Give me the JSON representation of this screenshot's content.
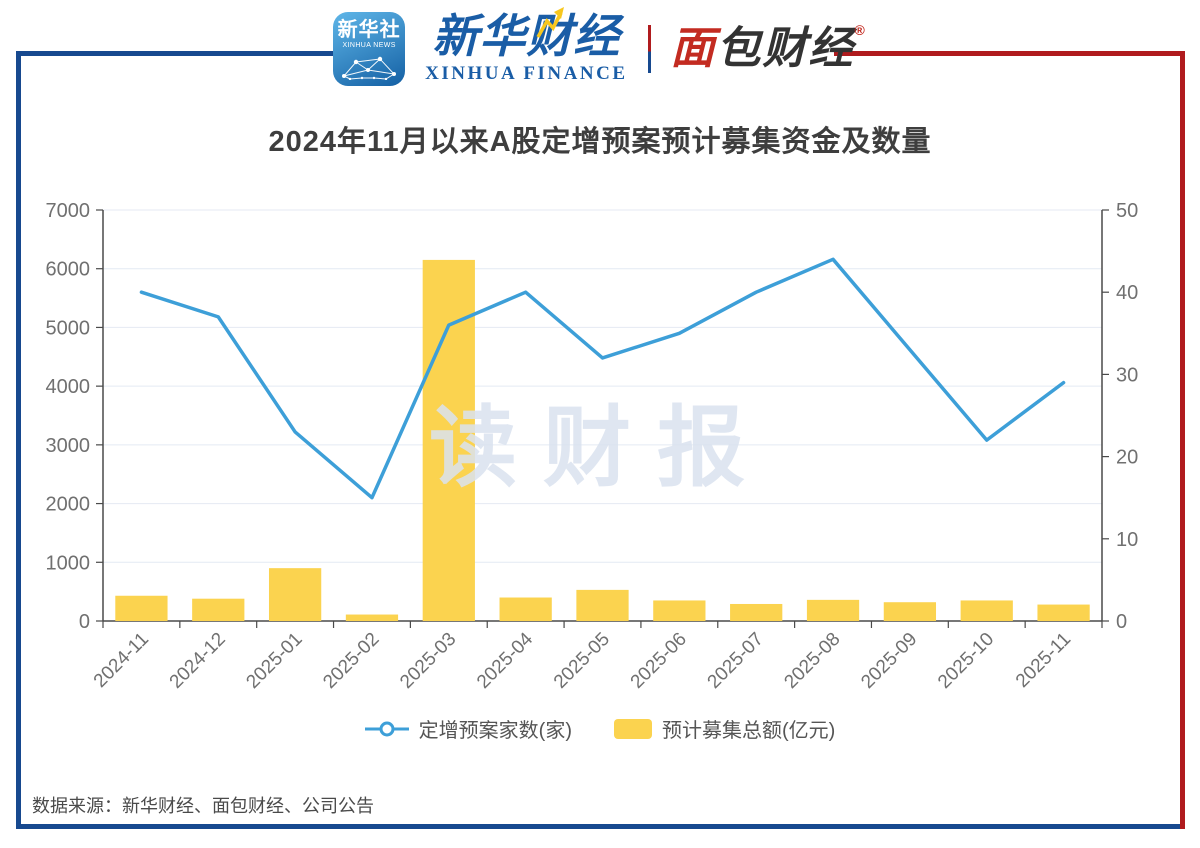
{
  "header": {
    "news_logo": {
      "cn": "新华社",
      "en": "XINHUA NEWS"
    },
    "finance_logo": {
      "cn": "新华财经",
      "en": "XINHUA FINANCE"
    },
    "bread_logo": {
      "first": "面",
      "rest": "包财经",
      "reg": "®"
    }
  },
  "chart_data": {
    "type": "bar+line",
    "title": "2024年11月以来A股定增预案预计募集资金及数量",
    "categories": [
      "2024-11",
      "2024-12",
      "2025-01",
      "2025-02",
      "2025-03",
      "2025-04",
      "2025-05",
      "2025-06",
      "2025-07",
      "2025-08",
      "2025-09",
      "2025-10",
      "2025-11"
    ],
    "series": [
      {
        "name": "定增预案家数(家)",
        "type": "line",
        "y_axis": "right",
        "values": [
          40,
          37,
          23,
          15,
          36,
          40,
          32,
          35,
          40,
          44,
          33,
          22,
          29
        ]
      },
      {
        "name": "预计募集总额(亿元)",
        "type": "bar",
        "y_axis": "left",
        "values": [
          430,
          380,
          900,
          110,
          6150,
          400,
          530,
          350,
          290,
          360,
          320,
          350,
          280
        ]
      }
    ],
    "left_axis": {
      "min": 0,
      "max": 7000,
      "step": 1000
    },
    "right_axis": {
      "min": 0,
      "max": 50,
      "step": 10
    },
    "grid": true,
    "legend_position": "bottom",
    "watermark": "读财报"
  },
  "footer": {
    "source": "数据来源：新华财经、面包财经、公司公告"
  },
  "colors": {
    "line_series": "#3D9FD8",
    "bar_series": "#FBD34F",
    "grid_line": "#E4EAF3",
    "axis_line": "#4A4A4A",
    "tick_label": "#707070",
    "title_text": "#3E3E3E",
    "watermark_text": "#D9E2EF",
    "border_blue": "#17498F",
    "border_red": "#B01B1E",
    "legend_text": "#555555",
    "footer_text": "#4A4A4A",
    "logo_blue": "#1A5DA6",
    "logo_red": "#C32B21",
    "bolt_yellow": "#F7C71E"
  }
}
